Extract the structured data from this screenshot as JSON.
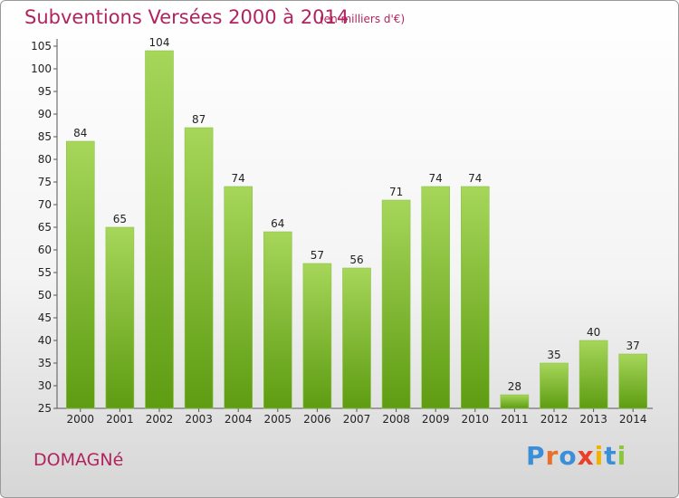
{
  "header": {
    "title": "Subventions Versées 2000 à 2014",
    "subtitle": "(en milliers d'€)"
  },
  "commune": "DOMAGNé",
  "logo": {
    "text": "Proxiti",
    "colors": [
      "#3b8fd8",
      "#e8702a",
      "#3b8fd8",
      "#e8402a",
      "#f0b400",
      "#3b8fd8",
      "#8cc63f"
    ]
  },
  "colors": {
    "bar_top": "#a6d65a",
    "bar_bottom": "#5e9c12",
    "title": "#b0245f"
  },
  "chart_data": {
    "type": "bar",
    "categories": [
      "2000",
      "2001",
      "2002",
      "2003",
      "2004",
      "2005",
      "2006",
      "2007",
      "2008",
      "2009",
      "2010",
      "2011",
      "2012",
      "2013",
      "2014"
    ],
    "values": [
      84,
      65,
      104,
      87,
      74,
      64,
      57,
      56,
      71,
      74,
      74,
      28,
      35,
      40,
      37
    ],
    "title": "Subventions Versées 2000 à 2014",
    "subtitle": "(en milliers d'€)",
    "xlabel": "",
    "ylabel": "",
    "ylim": [
      25,
      105
    ],
    "yticks": [
      25,
      30,
      35,
      40,
      45,
      50,
      55,
      60,
      65,
      70,
      75,
      80,
      85,
      90,
      95,
      100,
      105
    ],
    "grid": false,
    "data_labels": true
  }
}
